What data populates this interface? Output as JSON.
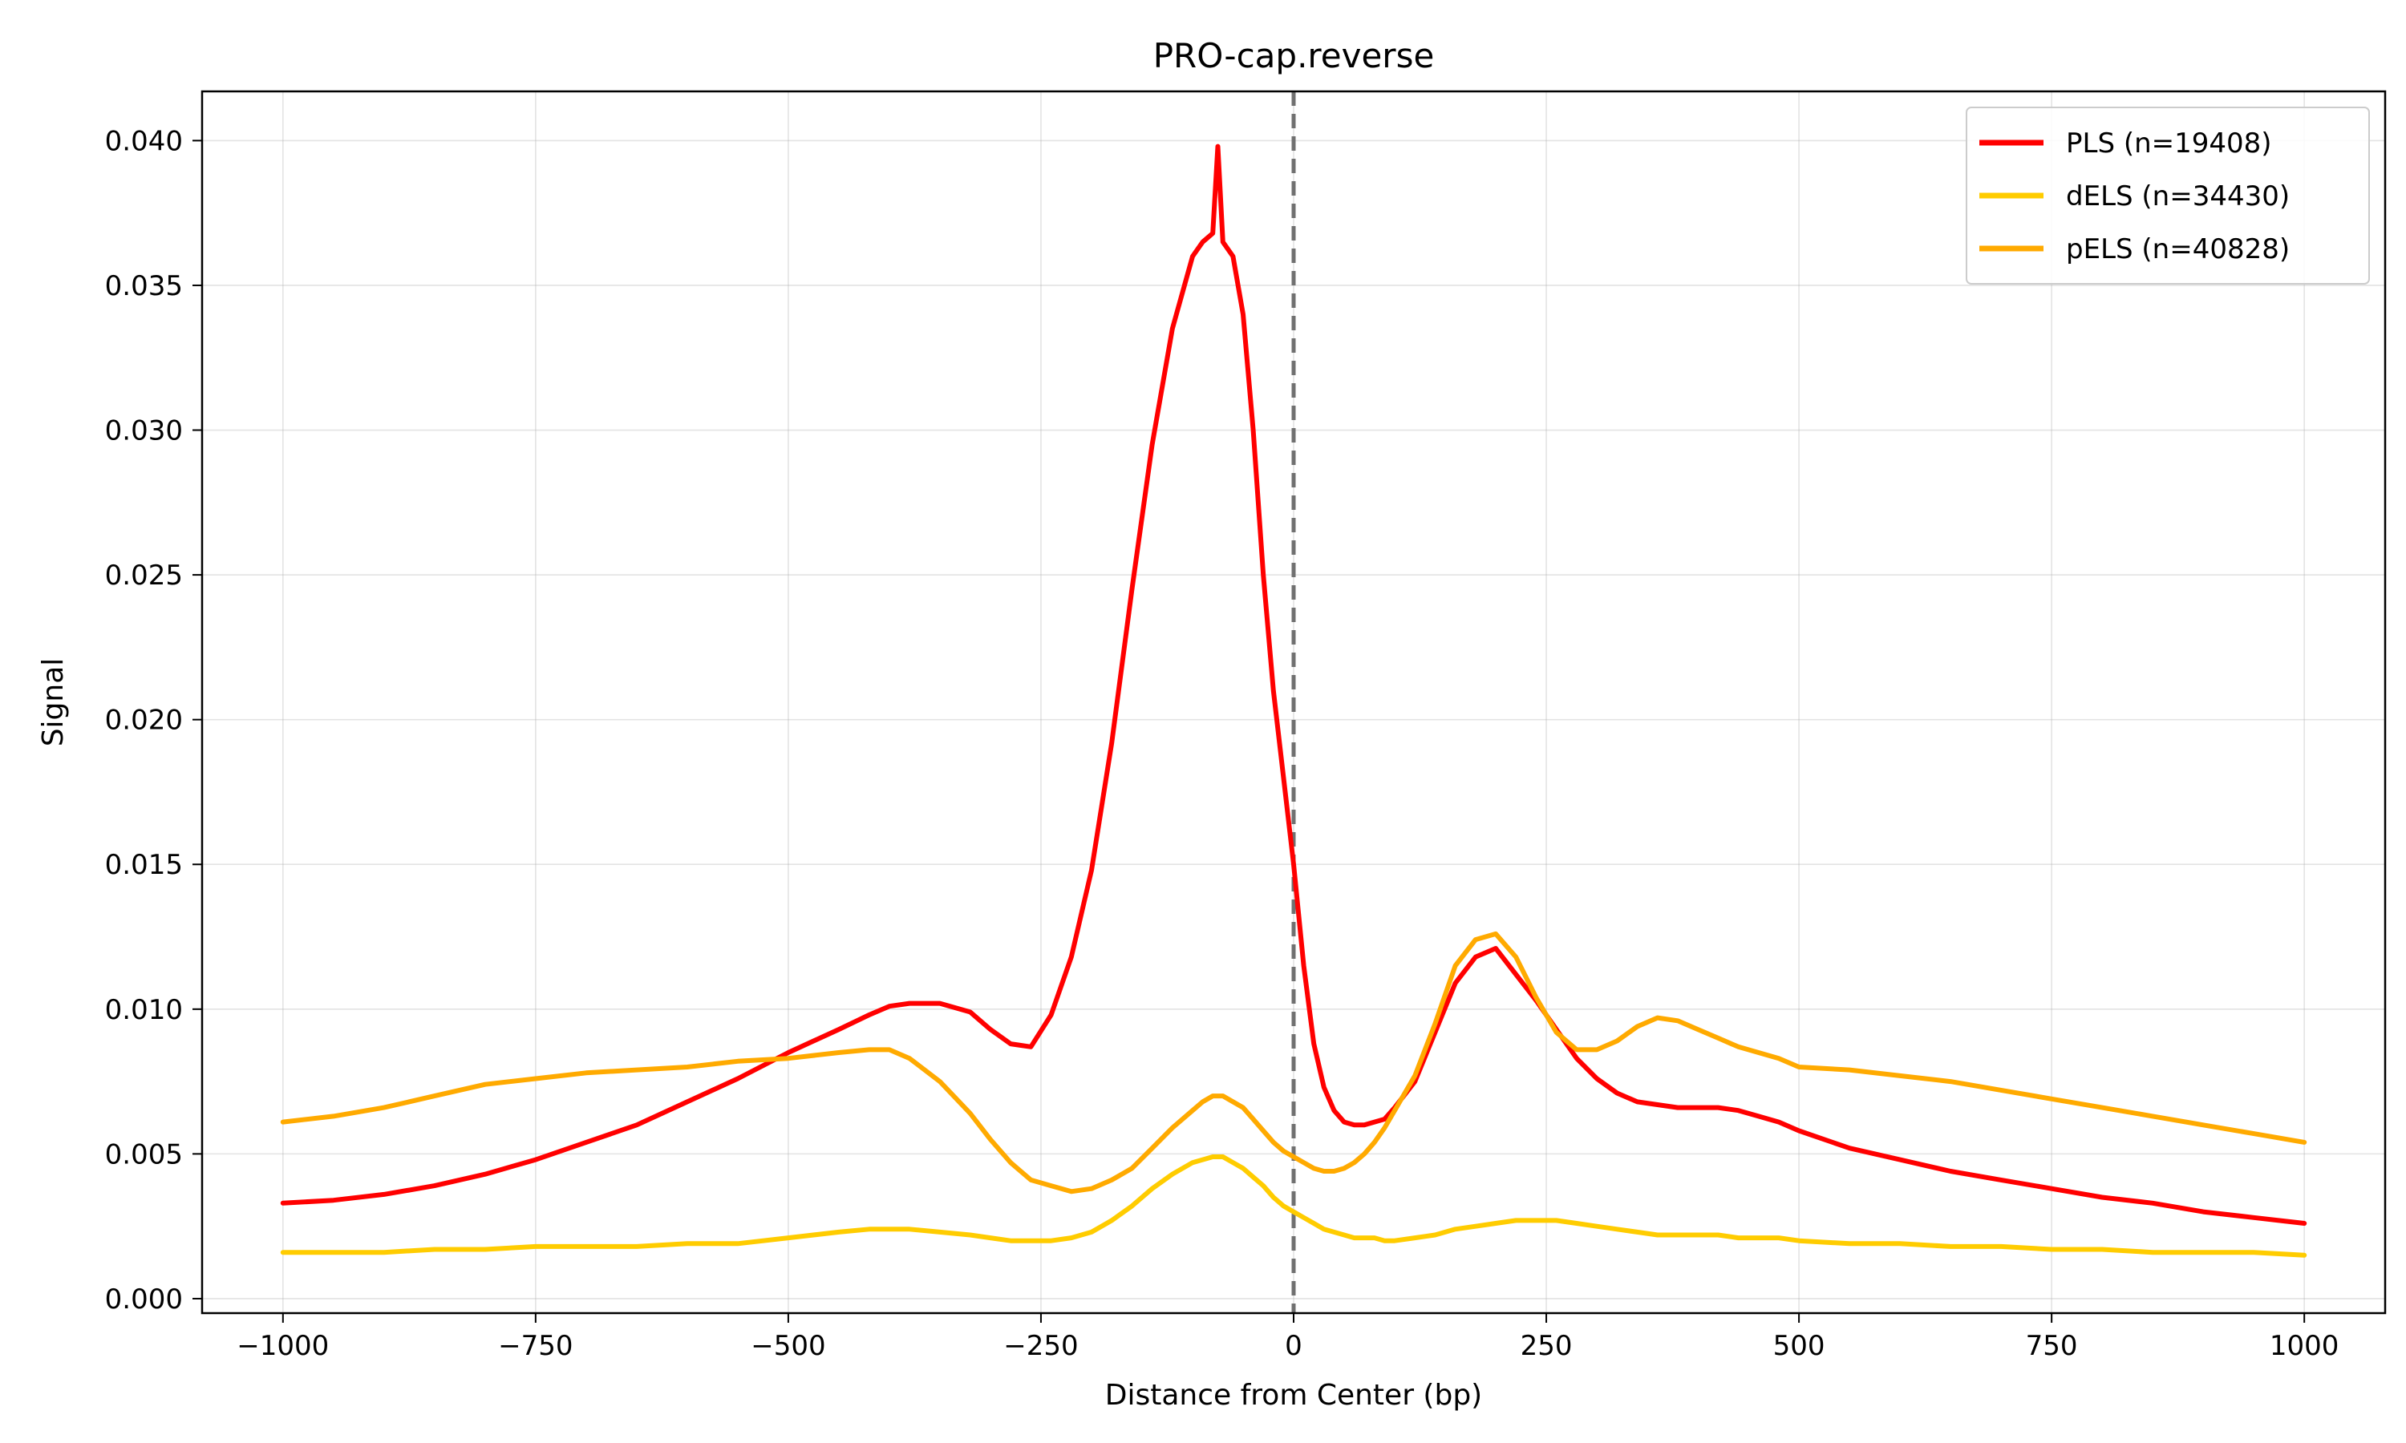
{
  "chart_data": {
    "type": "line",
    "title": "PRO-cap.reverse",
    "xlabel": "Distance from Center (bp)",
    "ylabel": "Signal",
    "xlim": [
      -1080,
      1080
    ],
    "ylim": [
      -0.0005,
      0.0417
    ],
    "xticks": [
      -1000,
      -750,
      -500,
      -250,
      0,
      250,
      500,
      750,
      1000
    ],
    "xtick_labels": [
      "−1000",
      "−750",
      "−500",
      "−250",
      "0",
      "250",
      "500",
      "750",
      "1000"
    ],
    "yticks": [
      0.0,
      0.005,
      0.01,
      0.015,
      0.02,
      0.025,
      0.03,
      0.035,
      0.04
    ],
    "ytick_labels": [
      "0.000",
      "0.005",
      "0.010",
      "0.015",
      "0.020",
      "0.025",
      "0.030",
      "0.035",
      "0.040"
    ],
    "grid": true,
    "legend_position": "top-right",
    "reference_line": {
      "x": 0,
      "style": "dashed",
      "color": "#707070"
    },
    "x": [
      -1000,
      -950,
      -900,
      -850,
      -800,
      -750,
      -700,
      -650,
      -600,
      -550,
      -500,
      -450,
      -420,
      -400,
      -380,
      -350,
      -320,
      -300,
      -280,
      -260,
      -240,
      -220,
      -200,
      -180,
      -160,
      -140,
      -120,
      -100,
      -90,
      -80,
      -75,
      -70,
      -60,
      -50,
      -40,
      -30,
      -20,
      -10,
      0,
      10,
      20,
      30,
      40,
      50,
      60,
      70,
      80,
      90,
      100,
      120,
      140,
      160,
      180,
      200,
      220,
      240,
      260,
      280,
      300,
      320,
      340,
      360,
      380,
      400,
      420,
      440,
      460,
      480,
      500,
      550,
      600,
      650,
      700,
      750,
      800,
      850,
      900,
      950,
      1000
    ],
    "series": [
      {
        "name": "PLS (n=19408)",
        "color": "#ff0000",
        "values": [
          0.0033,
          0.0034,
          0.0036,
          0.0039,
          0.0043,
          0.0048,
          0.0054,
          0.006,
          0.0068,
          0.0076,
          0.0085,
          0.0093,
          0.0098,
          0.0101,
          0.0102,
          0.0102,
          0.0099,
          0.0093,
          0.0088,
          0.0087,
          0.0098,
          0.0118,
          0.0148,
          0.0192,
          0.0245,
          0.0295,
          0.0335,
          0.036,
          0.0365,
          0.0368,
          0.0398,
          0.0365,
          0.036,
          0.034,
          0.03,
          0.025,
          0.021,
          0.018,
          0.015,
          0.0115,
          0.0088,
          0.0073,
          0.0065,
          0.0061,
          0.006,
          0.006,
          0.0061,
          0.0062,
          0.0066,
          0.0075,
          0.0092,
          0.0109,
          0.0118,
          0.0121,
          0.0112,
          0.0103,
          0.0093,
          0.0083,
          0.0076,
          0.0071,
          0.0068,
          0.0067,
          0.0066,
          0.0066,
          0.0066,
          0.0065,
          0.0063,
          0.0061,
          0.0058,
          0.0052,
          0.0048,
          0.0044,
          0.0041,
          0.0038,
          0.0035,
          0.0033,
          0.003,
          0.0028,
          0.0026
        ]
      },
      {
        "name": "dELS (n=34430)",
        "color": "#ffcc00",
        "values": [
          0.0016,
          0.0016,
          0.0016,
          0.0017,
          0.0017,
          0.0018,
          0.0018,
          0.0018,
          0.0019,
          0.0019,
          0.0021,
          0.0023,
          0.0024,
          0.0024,
          0.0024,
          0.0023,
          0.0022,
          0.0021,
          0.002,
          0.002,
          0.002,
          0.0021,
          0.0023,
          0.0027,
          0.0032,
          0.0038,
          0.0043,
          0.0047,
          0.0048,
          0.0049,
          0.0049,
          0.0049,
          0.0047,
          0.0045,
          0.0042,
          0.0039,
          0.0035,
          0.0032,
          0.003,
          0.0028,
          0.0026,
          0.0024,
          0.0023,
          0.0022,
          0.0021,
          0.0021,
          0.0021,
          0.002,
          0.002,
          0.0021,
          0.0022,
          0.0024,
          0.0025,
          0.0026,
          0.0027,
          0.0027,
          0.0027,
          0.0026,
          0.0025,
          0.0024,
          0.0023,
          0.0022,
          0.0022,
          0.0022,
          0.0022,
          0.0021,
          0.0021,
          0.0021,
          0.002,
          0.0019,
          0.0019,
          0.0018,
          0.0018,
          0.0017,
          0.0017,
          0.0016,
          0.0016,
          0.0016,
          0.0015
        ]
      },
      {
        "name": "pELS (n=40828)",
        "color": "#ffaa00",
        "values": [
          0.0061,
          0.0063,
          0.0066,
          0.007,
          0.0074,
          0.0076,
          0.0078,
          0.0079,
          0.008,
          0.0082,
          0.0083,
          0.0085,
          0.0086,
          0.0086,
          0.0083,
          0.0075,
          0.0064,
          0.0055,
          0.0047,
          0.0041,
          0.0039,
          0.0037,
          0.0038,
          0.0041,
          0.0045,
          0.0052,
          0.0059,
          0.0065,
          0.0068,
          0.007,
          0.007,
          0.007,
          0.0068,
          0.0066,
          0.0062,
          0.0058,
          0.0054,
          0.0051,
          0.0049,
          0.0047,
          0.0045,
          0.0044,
          0.0044,
          0.0045,
          0.0047,
          0.005,
          0.0054,
          0.0059,
          0.0065,
          0.0077,
          0.0095,
          0.0115,
          0.0124,
          0.0126,
          0.0118,
          0.0104,
          0.0092,
          0.0086,
          0.0086,
          0.0089,
          0.0094,
          0.0097,
          0.0096,
          0.0093,
          0.009,
          0.0087,
          0.0085,
          0.0083,
          0.008,
          0.0079,
          0.0077,
          0.0075,
          0.0072,
          0.0069,
          0.0066,
          0.0063,
          0.006,
          0.0057,
          0.0054
        ]
      }
    ]
  }
}
